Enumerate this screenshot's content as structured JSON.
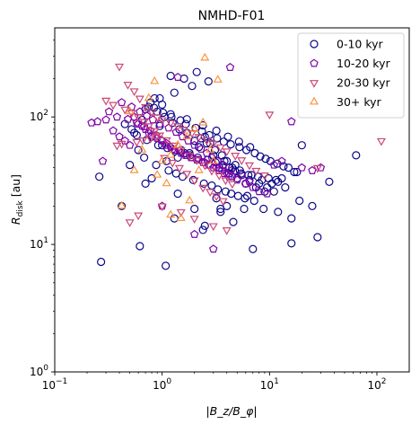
{
  "chart_data": {
    "type": "scatter",
    "title": "NMHD-F01",
    "xlabel": "|B_z/B_φ|",
    "ylabel": "R_disk [au]",
    "xscale": "log",
    "yscale": "log",
    "xlim": [
      0.1,
      200
    ],
    "ylim": [
      1,
      500
    ],
    "grid": false,
    "legend_position": "top-right",
    "x_ticks": [
      {
        "value": 0.1,
        "base": "10",
        "exp": "−1"
      },
      {
        "value": 1,
        "base": "10",
        "exp": "0"
      },
      {
        "value": 10,
        "base": "10",
        "exp": "1"
      },
      {
        "value": 100,
        "base": "10",
        "exp": "2"
      }
    ],
    "y_ticks": [
      {
        "value": 1,
        "base": "10",
        "exp": "0"
      },
      {
        "value": 10,
        "base": "10",
        "exp": "1"
      },
      {
        "value": 100,
        "base": "10",
        "exp": "2"
      }
    ],
    "series": [
      {
        "name": "0-10 kyr",
        "marker": "circle",
        "color": "#0d0887",
        "x": [
          0.27,
          0.62,
          1.08,
          7.0,
          0.26,
          0.42,
          16,
          28,
          64,
          36,
          18,
          20,
          12,
          15,
          3.2,
          3.5,
          4.6,
          5.8,
          2.4,
          0.5,
          0.55,
          0.7,
          0.85,
          1.3,
          1.9,
          1.2,
          1.6,
          2.1,
          2.7,
          0.95,
          0.8,
          0.65,
          1.0,
          1.5,
          2.0,
          2.5,
          3.0,
          3.8,
          4.5,
          5.5,
          6.5,
          8.0,
          9.5,
          11,
          13,
          17,
          1.1,
          1.4,
          1.8,
          2.2,
          2.8,
          3.4,
          4.2,
          5.0,
          6.0,
          7.5,
          9.0,
          0.75,
          0.9,
          1.05,
          1.25,
          1.45,
          1.7,
          2.3,
          2.6,
          3.1,
          3.6,
          4.0,
          4.8,
          5.3,
          6.8,
          8.5,
          10.5,
          14,
          0.6,
          0.68,
          0.88,
          1.15,
          1.35,
          1.55,
          1.95,
          2.45,
          2.9,
          3.3,
          3.9,
          4.4,
          5.1,
          5.9,
          7.2,
          1.3,
          2.0,
          2.5,
          1.4,
          0.7,
          0.8,
          3.5,
          4.0,
          6.2,
          8.8,
          12,
          16,
          19,
          25,
          0.45,
          0.52,
          0.58,
          0.72,
          0.92,
          1.12,
          1.32,
          1.62,
          1.82,
          2.15,
          2.65,
          3.15,
          3.65,
          4.25,
          4.75,
          5.45,
          6.35,
          7.8,
          9.8,
          11.5,
          1.0,
          1.2,
          0.95,
          1.7,
          2.4,
          3.2,
          4.1,
          5.2,
          6.6,
          0.78,
          0.84,
          1.02,
          1.22,
          1.48,
          1.66,
          2.05,
          2.35,
          2.75,
          3.25,
          3.75,
          4.35,
          5.25,
          6.1,
          7.3,
          8.2,
          9.2,
          10.2,
          11.8,
          13.5
        ],
        "y": [
          7.3,
          9.7,
          6.8,
          9.2,
          34,
          20,
          10.2,
          11.4,
          50,
          31,
          37,
          60,
          31,
          40,
          23,
          19,
          15,
          19,
          13,
          42,
          75,
          115,
          140,
          155,
          175,
          210,
          200,
          225,
          190,
          85,
          70,
          95,
          60,
          55,
          65,
          70,
          50,
          45,
          40,
          35,
          32,
          30,
          28,
          26,
          33,
          37,
          45,
          48,
          52,
          58,
          62,
          40,
          36,
          33,
          30,
          28,
          26,
          120,
          110,
          100,
          90,
          80,
          75,
          68,
          62,
          55,
          50,
          45,
          42,
          38,
          35,
          32,
          30,
          28,
          55,
          48,
          42,
          38,
          36,
          34,
          32,
          30,
          29,
          27,
          26,
          25,
          24,
          23,
          22,
          16,
          19,
          14,
          25,
          30,
          33,
          18,
          20,
          24,
          19,
          18,
          16,
          22,
          20,
          88,
          80,
          72,
          66,
          60,
          57,
          54,
          52,
          50,
          48,
          46,
          44,
          42,
          40,
          38,
          36,
          35,
          34,
          33,
          32,
          125,
          105,
          140,
          96,
          86,
          78,
          70,
          64,
          58,
          130,
          118,
          108,
          100,
          94,
          88,
          82,
          77,
          72,
          68,
          64,
          61,
          58,
          55,
          52,
          49,
          47,
          45,
          43,
          41
        ]
      },
      {
        "name": "10-20 kyr",
        "marker": "pentagon",
        "color": "#7e03a8",
        "x": [
          0.22,
          0.25,
          0.3,
          0.28,
          0.35,
          0.4,
          0.45,
          0.5,
          0.55,
          0.6,
          0.65,
          0.7,
          0.75,
          0.8,
          0.9,
          1.0,
          1.1,
          1.2,
          1.3,
          1.5,
          1.7,
          1.9,
          2.2,
          2.5,
          2.8,
          3.2,
          3.6,
          4.0,
          4.5,
          5.0,
          6.0,
          7.0,
          8.0,
          9.5,
          11,
          13,
          16,
          20,
          25,
          30,
          0.32,
          0.38,
          0.48,
          0.58,
          0.68,
          0.78,
          0.88,
          0.98,
          1.08,
          1.25,
          1.45,
          1.65,
          1.85,
          2.1,
          2.4,
          2.7,
          3.0,
          3.4,
          3.8,
          4.2,
          0.42,
          0.52,
          0.62,
          0.72,
          0.82,
          0.95,
          1.15,
          1.35,
          1.55,
          1.75,
          2.0,
          2.3,
          2.6,
          2.9,
          3.3,
          3.7,
          4.4,
          5.5,
          6.5,
          1.0,
          2.0,
          3.0,
          4.3,
          1.4
        ],
        "y": [
          90,
          92,
          95,
          45,
          78,
          70,
          65,
          60,
          100,
          88,
          85,
          80,
          75,
          72,
          68,
          65,
          62,
          58,
          55,
          52,
          50,
          48,
          46,
          44,
          42,
          40,
          38,
          36,
          34,
          32,
          30,
          28,
          26,
          25,
          42,
          45,
          92,
          40,
          38,
          40,
          110,
          100,
          96,
          90,
          84,
          78,
          72,
          66,
          60,
          56,
          54,
          50,
          48,
          46,
          44,
          42,
          40,
          38,
          36,
          34,
          130,
          120,
          110,
          102,
          95,
          88,
          82,
          76,
          70,
          65,
          60,
          56,
          52,
          48,
          45,
          42,
          38,
          35,
          31,
          20,
          12,
          9.2,
          245,
          205
        ]
      },
      {
        "name": "20-30 kyr",
        "marker": "triangle-down",
        "color": "#cc4778",
        "x": [
          0.4,
          0.48,
          0.55,
          0.62,
          0.7,
          0.8,
          0.9,
          1.0,
          1.2,
          1.4,
          1.6,
          1.9,
          2.2,
          2.6,
          3.0,
          3.5,
          4.0,
          4.8,
          5.5,
          6.5,
          7.5,
          9.0,
          10,
          28,
          110,
          0.3,
          0.35,
          0.45,
          0.52,
          0.6,
          0.68,
          0.75,
          0.85,
          0.95,
          1.1,
          1.3,
          1.5,
          1.8,
          2.1,
          2.5,
          2.9,
          3.4,
          3.9,
          4.5,
          0.5,
          0.6,
          1.0,
          1.5,
          2.0,
          3.0,
          4.0,
          0.38,
          0.42,
          0.58,
          0.66,
          0.78,
          0.88,
          1.05,
          1.25,
          1.45,
          1.7,
          2.0,
          2.4,
          2.8,
          3.2,
          3.7
        ],
        "y": [
          250,
          180,
          160,
          140,
          120,
          110,
          100,
          95,
          90,
          85,
          80,
          75,
          70,
          66,
          62,
          58,
          54,
          50,
          46,
          42,
          38,
          35,
          105,
          40,
          65,
          135,
          125,
          115,
          108,
          100,
          92,
          85,
          78,
          72,
          66,
          60,
          55,
          50,
          46,
          42,
          38,
          35,
          32,
          30,
          15,
          17,
          20,
          18,
          16,
          14,
          13,
          60,
          62,
          64,
          66,
          68,
          70,
          48,
          44,
          40,
          36,
          32,
          28,
          26,
          24,
          22
        ]
      },
      {
        "name": "30+ kyr",
        "marker": "triangle-up",
        "color": "#f89540",
        "x": [
          2.5,
          3.3,
          0.42,
          0.55,
          0.65,
          0.75,
          0.85,
          1.0,
          1.2,
          1.4,
          1.7,
          2.0,
          2.4,
          2.8,
          1.2,
          1.5,
          1.8,
          0.5,
          0.9,
          1.1,
          3.0,
          2.2
        ],
        "y": [
          290,
          195,
          20,
          38,
          55,
          140,
          190,
          45,
          50,
          60,
          70,
          80,
          90,
          55,
          17,
          16,
          22,
          110,
          35,
          30,
          45,
          38
        ]
      }
    ]
  }
}
